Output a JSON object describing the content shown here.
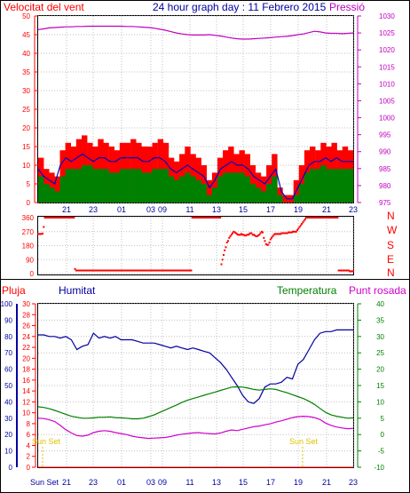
{
  "header": {
    "wind_label": "Velocitat del vent",
    "title": "24 hour graph day : 11 Febrero 2015",
    "pressure_label": "Pressió"
  },
  "bottom_header": {
    "rain_label": "Pluja",
    "humidity_label": "Humitat",
    "temperature_label": "Temperatura",
    "dewpoint_label": "Punt rosada"
  },
  "annotations": {
    "sunset_left": "Sun Set",
    "sunset_right": "Sun Set",
    "sunset_footer": "Sun Set"
  },
  "colors": {
    "wind_gust": "#ff0000",
    "wind_avg": "#008000",
    "wind_line": "#0000c0",
    "pressure": "#c000c0",
    "direction": "#ff0000",
    "humidity": "#0000a0",
    "temperature": "#008000",
    "dewpoint": "#d000d0",
    "rain_axis": "#ff0000",
    "humidity_axis": "#0000a0",
    "temperature_axis": "#008000",
    "sunset": "#e0c000"
  },
  "chart_data": [
    {
      "type": "line",
      "name": "wind_pressure",
      "xlabel": "",
      "x_ticks": [
        "21",
        "23",
        "01",
        "03",
        "09",
        "11",
        "13",
        "15",
        "17",
        "19",
        "21",
        "23"
      ],
      "y_left": {
        "label": "Velocitat del vent",
        "range": [
          0,
          50
        ],
        "ticks": [
          0,
          5,
          10,
          15,
          20,
          25,
          30,
          35,
          40,
          45,
          50
        ]
      },
      "y_right": {
        "label": "Pressió",
        "range": [
          975,
          1030
        ],
        "ticks": [
          975,
          980,
          985,
          990,
          995,
          1000,
          1005,
          1010,
          1015,
          1020,
          1025,
          1030
        ]
      },
      "series": [
        {
          "name": "gust",
          "axis": "left",
          "values": [
            12,
            9,
            8,
            7,
            14,
            16,
            15,
            17,
            18,
            16,
            15,
            17,
            16,
            15,
            14,
            16,
            16,
            17,
            16,
            15,
            15,
            16,
            17,
            16,
            12,
            11,
            13,
            15,
            13,
            12,
            10,
            6,
            8,
            12,
            14,
            15,
            13,
            14,
            13,
            10,
            8,
            7,
            10,
            13,
            4,
            2,
            2,
            6,
            10,
            14,
            15,
            14,
            16,
            15,
            16,
            14,
            15,
            14
          ]
        },
        {
          "name": "average",
          "axis": "left",
          "values": [
            9,
            7,
            6,
            5,
            10,
            12,
            11,
            12,
            13,
            12,
            11,
            12,
            12,
            11,
            11,
            12,
            12,
            12,
            12,
            11,
            11,
            12,
            12,
            11,
            9,
            8,
            9,
            10,
            9,
            8,
            7,
            4,
            6,
            9,
            10,
            11,
            10,
            10,
            9,
            7,
            6,
            5,
            7,
            9,
            3,
            1,
            1,
            4,
            7,
            10,
            11,
            11,
            12,
            11,
            12,
            11,
            11,
            11
          ]
        },
        {
          "name": "speed",
          "axis": "left",
          "values": [
            7,
            5,
            4,
            3,
            7,
            9,
            9,
            9,
            10,
            10,
            9,
            9,
            9,
            8,
            8,
            9,
            9,
            9,
            9,
            8,
            8,
            9,
            9,
            9,
            7,
            6,
            7,
            8,
            7,
            6,
            5,
            2,
            4,
            7,
            8,
            8,
            8,
            8,
            7,
            5,
            4,
            3,
            5,
            7,
            2,
            0,
            0,
            2,
            5,
            8,
            9,
            9,
            10,
            9,
            9,
            9,
            9,
            9
          ]
        },
        {
          "name": "pressure",
          "axis": "right",
          "values": [
            1026.0,
            1026.2,
            1026.5,
            1026.6,
            1026.7,
            1026.8,
            1026.8,
            1026.9,
            1026.9,
            1027.0,
            1027.0,
            1027.0,
            1027.0,
            1027.0,
            1027.0,
            1027.0,
            1026.9,
            1026.9,
            1026.8,
            1026.7,
            1026.6,
            1026.4,
            1026.1,
            1025.8,
            1025.4,
            1025.0,
            1024.7,
            1024.5,
            1024.4,
            1024.4,
            1024.4,
            1024.5,
            1024.3,
            1024.1,
            1023.8,
            1023.5,
            1023.3,
            1023.2,
            1023.2,
            1023.3,
            1023.4,
            1023.5,
            1023.6,
            1023.8,
            1023.9,
            1024.0,
            1024.2,
            1024.5,
            1024.7,
            1025.1,
            1025.5,
            1025.3,
            1025.0,
            1024.9,
            1024.9,
            1024.8,
            1024.9,
            1025.0
          ]
        }
      ]
    },
    {
      "type": "scatter",
      "name": "wind_direction",
      "y_range": [
        0,
        360
      ],
      "y_ticks": [
        0,
        90,
        180,
        270,
        360
      ],
      "compass_labels": [
        "N",
        "W",
        "S",
        "E",
        "N"
      ],
      "values": [
        255,
        255,
        255,
        255,
        258,
        300,
        360,
        360,
        360,
        360,
        360,
        360,
        360,
        360,
        360,
        360,
        360,
        360,
        360,
        360,
        360,
        360,
        360,
        360,
        360,
        360,
        360,
        360,
        360,
        360,
        360,
        360,
        360,
        30,
        20,
        20,
        20,
        20,
        20,
        20,
        20,
        20,
        20,
        20,
        20,
        20,
        20,
        20,
        20,
        20,
        20,
        20,
        20,
        20,
        20,
        20,
        20,
        20,
        20,
        20,
        20,
        20,
        20,
        20,
        20,
        20,
        20,
        20,
        20,
        20,
        20,
        20,
        20,
        20,
        20,
        20,
        20,
        20,
        20,
        20,
        20,
        20,
        20,
        20,
        20,
        20,
        20,
        20,
        20,
        20,
        20,
        20,
        20,
        20,
        20,
        20,
        20,
        20,
        20,
        20,
        20,
        20,
        20,
        20,
        20,
        20,
        20,
        20,
        20,
        20,
        20,
        20,
        20,
        20,
        20,
        20,
        20,
        20,
        20,
        20,
        20,
        20,
        20,
        20,
        20,
        20,
        20,
        20,
        20,
        20,
        20,
        20,
        20,
        20,
        20,
        20,
        20,
        20,
        360,
        360,
        360,
        360,
        360,
        360,
        360,
        360,
        360,
        360,
        360,
        360,
        360,
        360,
        360,
        360,
        360,
        360,
        360,
        360,
        360,
        360,
        360,
        360,
        360,
        360,
        60,
        90,
        120,
        150,
        170,
        200,
        210,
        230,
        240,
        250,
        260,
        270,
        265,
        260,
        255,
        250,
        250,
        250,
        255,
        250,
        250,
        245,
        245,
        250,
        250,
        255,
        260,
        260,
        250,
        250,
        245,
        240,
        240,
        245,
        250,
        260,
        270,
        265,
        230,
        210,
        190,
        185,
        185,
        200,
        220,
        230,
        240,
        250,
        255,
        255,
        255,
        255,
        255,
        255,
        260,
        260,
        260,
        260,
        260,
        260,
        265,
        265,
        265,
        265,
        270,
        270,
        270,
        270,
        280,
        290,
        300,
        310,
        320,
        330,
        340,
        350,
        360,
        360,
        360,
        360,
        360,
        360,
        360,
        360,
        360,
        360,
        360,
        360,
        360,
        360,
        360,
        360,
        360,
        360,
        360,
        360,
        360,
        360,
        360,
        360,
        360,
        360,
        360,
        360,
        360,
        20,
        20,
        20,
        20,
        20,
        20,
        20,
        20,
        20,
        20,
        15,
        15,
        15,
        15
      ]
    },
    {
      "type": "line",
      "name": "humidity_temperature_dewpoint_rain",
      "x_ticks": [
        "21",
        "23",
        "01",
        "03",
        "09",
        "11",
        "13",
        "15",
        "17",
        "19",
        "21",
        "23"
      ],
      "x_start_label": "Sun Set",
      "y_rain": {
        "label": "Pluja",
        "range": [
          0,
          30
        ],
        "ticks": [
          0,
          2,
          4,
          6,
          8,
          10,
          12,
          14,
          16,
          18,
          20,
          22,
          24,
          26,
          28,
          30
        ]
      },
      "y_humidity": {
        "label": "Humitat",
        "range": [
          0,
          100
        ],
        "ticks": [
          0,
          10,
          20,
          30,
          40,
          50,
          60,
          70,
          80,
          90,
          100
        ]
      },
      "y_right": {
        "label": "Temperatura / Punt rosada",
        "range": [
          -10,
          40
        ],
        "ticks": [
          -10,
          -5,
          0,
          5,
          10,
          15,
          20,
          25,
          30,
          35,
          40
        ]
      },
      "series": [
        {
          "name": "humidity",
          "axis": "humidity",
          "values": [
            81,
            81,
            80,
            80,
            79,
            80,
            78,
            72,
            74,
            75,
            82,
            79,
            80,
            79,
            80,
            78,
            78,
            78,
            77,
            76,
            76,
            76,
            75,
            74,
            73,
            74,
            73,
            72,
            73,
            72,
            71,
            70,
            67,
            64,
            60,
            55,
            50,
            44,
            40,
            39,
            42,
            49,
            51,
            51,
            52,
            55,
            54,
            63,
            66,
            72,
            78,
            82,
            83,
            83,
            84,
            84,
            84,
            84
          ]
        },
        {
          "name": "temperature",
          "axis": "right",
          "values": [
            8.5,
            8.3,
            7.9,
            7.4,
            6.8,
            6.2,
            5.6,
            5.3,
            5.0,
            5.0,
            5.1,
            5.3,
            5.3,
            5.4,
            5.2,
            5.1,
            5.0,
            4.8,
            4.8,
            5.0,
            5.5,
            6.0,
            6.8,
            7.5,
            8.3,
            9.0,
            9.8,
            10.5,
            11.0,
            11.5,
            12.0,
            12.5,
            13.0,
            13.5,
            14.0,
            14.5,
            14.6,
            14.5,
            14.2,
            13.8,
            13.6,
            13.8,
            14.0,
            13.8,
            13.3,
            12.8,
            12.2,
            11.6,
            11.0,
            10.2,
            9.2,
            8.0,
            6.8,
            6.0,
            5.6,
            5.3,
            5.0,
            5.1
          ]
        },
        {
          "name": "dewpoint",
          "axis": "right",
          "values": [
            5.0,
            4.9,
            4.5,
            4.0,
            2.8,
            1.5,
            0.5,
            -0.3,
            -0.5,
            -0.2,
            0.6,
            1.0,
            1.2,
            1.0,
            0.6,
            0.3,
            0.0,
            -0.5,
            -0.8,
            -1.0,
            -1.2,
            -1.1,
            -1.0,
            -0.9,
            -0.6,
            -0.2,
            0.1,
            0.3,
            0.5,
            0.6,
            0.4,
            0.3,
            0.2,
            0.5,
            1.0,
            1.4,
            1.2,
            1.6,
            2.0,
            2.4,
            2.6,
            3.0,
            3.3,
            3.8,
            4.2,
            4.7,
            5.2,
            5.5,
            5.6,
            5.5,
            5.2,
            4.6,
            3.5,
            2.8,
            2.3,
            2.0,
            1.8,
            1.9
          ]
        },
        {
          "name": "rain",
          "axis": "rain",
          "values": [
            0,
            0,
            0,
            0,
            0,
            0,
            0,
            0,
            0,
            0,
            0,
            0,
            0,
            0,
            0,
            0,
            0,
            0,
            0,
            0,
            0,
            0,
            0,
            0,
            0,
            0,
            0,
            0,
            0,
            0,
            0,
            0,
            0,
            0,
            0,
            0,
            0,
            0,
            0,
            0,
            0,
            0,
            0,
            0,
            0,
            0,
            0,
            0,
            0,
            0,
            0,
            0,
            0,
            0,
            0,
            0,
            0,
            0
          ]
        }
      ]
    }
  ]
}
